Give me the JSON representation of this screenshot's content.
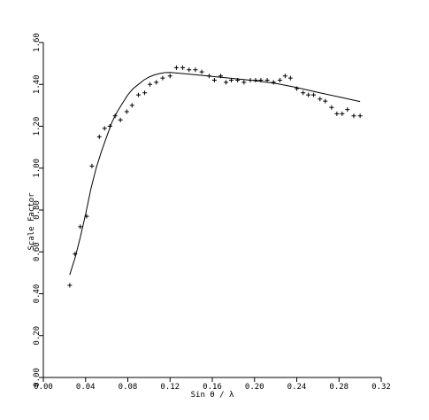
{
  "chart_data": {
    "type": "scatter",
    "xlabel": "Sin θ / λ",
    "ylabel": "Scale Factor",
    "xlim": [
      0.0,
      0.32
    ],
    "ylim": [
      0.0,
      1.6
    ],
    "x_ticks": [
      0.0,
      0.04,
      0.08,
      0.12,
      0.16,
      0.2,
      0.24,
      0.28,
      0.32
    ],
    "x_tick_labels": [
      "0.00",
      "0.04",
      "0.08",
      "0.12",
      "0.16",
      "0.20",
      "0.24",
      "0.28",
      "0.32"
    ],
    "y_ticks": [
      0.0,
      0.2,
      0.4,
      0.6,
      0.8,
      1.0,
      1.2,
      1.4,
      1.6
    ],
    "y_tick_labels": [
      "0.00",
      "0.20",
      "0.40",
      "0.60",
      "0.80",
      "1.00",
      "1.20",
      "1.40",
      "1.60"
    ],
    "series": [
      {
        "marker": "plus",
        "points": [
          [
            0.025,
            0.44
          ],
          [
            0.03,
            0.59
          ],
          [
            0.035,
            0.72
          ],
          [
            0.041,
            0.77
          ],
          [
            0.046,
            1.01
          ],
          [
            0.053,
            1.15
          ],
          [
            0.058,
            1.19
          ],
          [
            0.063,
            1.2
          ],
          [
            0.068,
            1.25
          ],
          [
            0.073,
            1.23
          ],
          [
            0.079,
            1.27
          ],
          [
            0.084,
            1.3
          ],
          [
            0.09,
            1.35
          ],
          [
            0.096,
            1.36
          ],
          [
            0.101,
            1.4
          ],
          [
            0.107,
            1.41
          ],
          [
            0.113,
            1.43
          ],
          [
            0.12,
            1.44
          ],
          [
            0.126,
            1.48
          ],
          [
            0.132,
            1.48
          ],
          [
            0.138,
            1.47
          ],
          [
            0.144,
            1.47
          ],
          [
            0.15,
            1.46
          ],
          [
            0.157,
            1.44
          ],
          [
            0.162,
            1.42
          ],
          [
            0.168,
            1.44
          ],
          [
            0.173,
            1.41
          ],
          [
            0.178,
            1.42
          ],
          [
            0.184,
            1.42
          ],
          [
            0.19,
            1.41
          ],
          [
            0.196,
            1.42
          ],
          [
            0.201,
            1.42
          ],
          [
            0.206,
            1.42
          ],
          [
            0.212,
            1.42
          ],
          [
            0.218,
            1.41
          ],
          [
            0.224,
            1.42
          ],
          [
            0.229,
            1.44
          ],
          [
            0.234,
            1.43
          ],
          [
            0.24,
            1.38
          ],
          [
            0.246,
            1.36
          ],
          [
            0.251,
            1.35
          ],
          [
            0.256,
            1.35
          ],
          [
            0.262,
            1.33
          ],
          [
            0.267,
            1.32
          ],
          [
            0.273,
            1.29
          ],
          [
            0.278,
            1.26
          ],
          [
            0.283,
            1.26
          ],
          [
            0.288,
            1.28
          ],
          [
            0.294,
            1.25
          ],
          [
            0.3,
            1.25
          ]
        ]
      },
      {
        "marker": "line",
        "points": [
          [
            0.025,
            0.49
          ],
          [
            0.03,
            0.57
          ],
          [
            0.035,
            0.67
          ],
          [
            0.04,
            0.78
          ],
          [
            0.045,
            0.9
          ],
          [
            0.05,
            1.0
          ],
          [
            0.055,
            1.08
          ],
          [
            0.06,
            1.15
          ],
          [
            0.065,
            1.22
          ],
          [
            0.07,
            1.27
          ],
          [
            0.075,
            1.31
          ],
          [
            0.08,
            1.35
          ],
          [
            0.085,
            1.38
          ],
          [
            0.09,
            1.4
          ],
          [
            0.095,
            1.42
          ],
          [
            0.1,
            1.435
          ],
          [
            0.105,
            1.445
          ],
          [
            0.11,
            1.452
          ],
          [
            0.115,
            1.456
          ],
          [
            0.12,
            1.457
          ],
          [
            0.125,
            1.455
          ],
          [
            0.14,
            1.448
          ],
          [
            0.16,
            1.438
          ],
          [
            0.18,
            1.428
          ],
          [
            0.2,
            1.418
          ],
          [
            0.22,
            1.405
          ],
          [
            0.24,
            1.385
          ],
          [
            0.26,
            1.362
          ],
          [
            0.28,
            1.34
          ],
          [
            0.3,
            1.318
          ]
        ]
      }
    ]
  }
}
